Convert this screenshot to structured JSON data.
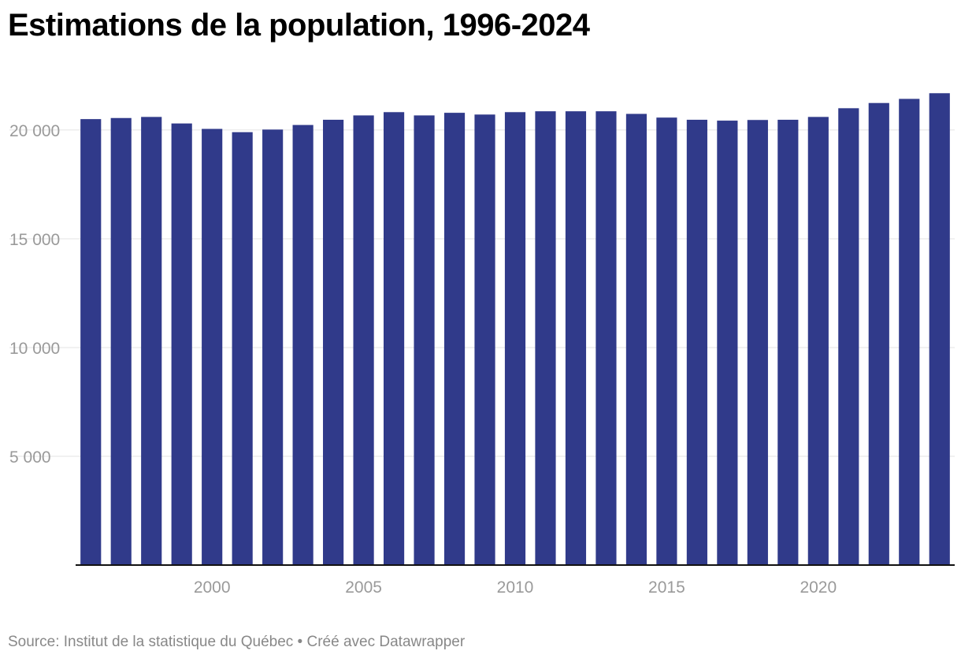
{
  "header": {
    "title": "Estimations de la population, 1996-2024"
  },
  "footer": {
    "source": "Source: Institut de la statistique du Québec",
    "separator": " • ",
    "credit": "Créé avec Datawrapper"
  },
  "colors": {
    "bar": "#303a8a",
    "grid": "#e3e3e3",
    "axis": "#111111",
    "tick_text": "#9a9a9a"
  },
  "chart_data": {
    "type": "bar",
    "title": "Estimations de la population, 1996-2024",
    "xlabel": "",
    "ylabel": "",
    "ylim": [
      0,
      21700
    ],
    "grid": true,
    "y_ticks": [
      5000,
      10000,
      15000,
      20000
    ],
    "y_tick_labels": [
      "5 000",
      "10 000",
      "15 000",
      "20 000"
    ],
    "x_tick_labels": [
      "2000",
      "2005",
      "2010",
      "2015",
      "2020"
    ],
    "categories": [
      "1996",
      "1997",
      "1998",
      "1999",
      "2000",
      "2001",
      "2002",
      "2003",
      "2004",
      "2005",
      "2006",
      "2007",
      "2008",
      "2009",
      "2010",
      "2011",
      "2012",
      "2013",
      "2014",
      "2015",
      "2016",
      "2017",
      "2018",
      "2019",
      "2020",
      "2021",
      "2022",
      "2023",
      "2024"
    ],
    "values": [
      20500,
      20550,
      20600,
      20300,
      20050,
      19900,
      20020,
      20230,
      20470,
      20670,
      20820,
      20670,
      20790,
      20710,
      20820,
      20860,
      20860,
      20860,
      20740,
      20570,
      20470,
      20430,
      20460,
      20470,
      20600,
      21000,
      21240,
      21430,
      21690
    ]
  }
}
